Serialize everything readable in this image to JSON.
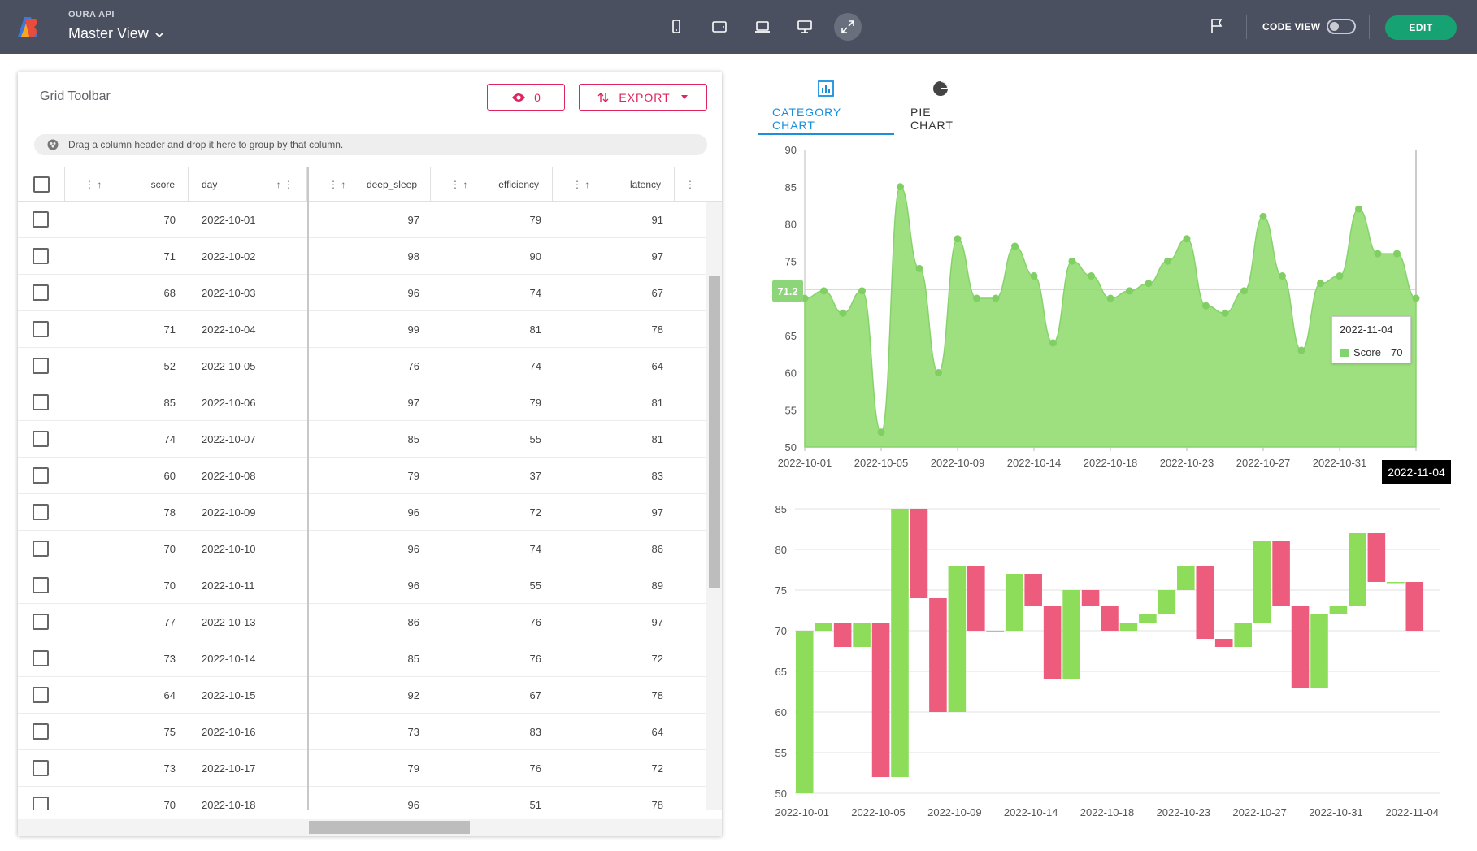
{
  "app": {
    "subtitle": "OURA API",
    "title": "Master View",
    "code_view_label": "CODE VIEW",
    "edit_label": "EDIT",
    "devices": [
      "phone-icon",
      "tablet-icon",
      "laptop-icon",
      "desktop-icon",
      "fullscreen-icon"
    ],
    "active_device": "fullscreen-icon"
  },
  "grid": {
    "toolbar_title": "Grid Toolbar",
    "hidden_count": "0",
    "export_label": "EXPORT",
    "group_hint": "Drag a column header and drop it here to group by that column.",
    "columns": [
      "score",
      "day",
      "deep_sleep",
      "efficiency",
      "latency"
    ],
    "rows": [
      [
        "70",
        "2022-10-01",
        "97",
        "79",
        "91"
      ],
      [
        "71",
        "2022-10-02",
        "98",
        "90",
        "97"
      ],
      [
        "68",
        "2022-10-03",
        "96",
        "74",
        "67"
      ],
      [
        "71",
        "2022-10-04",
        "99",
        "81",
        "78"
      ],
      [
        "52",
        "2022-10-05",
        "76",
        "74",
        "64"
      ],
      [
        "85",
        "2022-10-06",
        "97",
        "79",
        "81"
      ],
      [
        "74",
        "2022-10-07",
        "85",
        "55",
        "81"
      ],
      [
        "60",
        "2022-10-08",
        "79",
        "37",
        "83"
      ],
      [
        "78",
        "2022-10-09",
        "96",
        "72",
        "97"
      ],
      [
        "70",
        "2022-10-10",
        "96",
        "74",
        "86"
      ],
      [
        "70",
        "2022-10-11",
        "96",
        "55",
        "89"
      ],
      [
        "77",
        "2022-10-13",
        "86",
        "76",
        "97"
      ],
      [
        "73",
        "2022-10-14",
        "85",
        "76",
        "72"
      ],
      [
        "64",
        "2022-10-15",
        "92",
        "67",
        "78"
      ],
      [
        "75",
        "2022-10-16",
        "73",
        "83",
        "64"
      ],
      [
        "73",
        "2022-10-17",
        "79",
        "76",
        "72"
      ],
      [
        "70",
        "2022-10-18",
        "96",
        "51",
        "78"
      ]
    ]
  },
  "tabs": {
    "category": "CATEGORY CHART",
    "pie": "PIE CHART"
  },
  "tooltip": {
    "date": "2022-11-04",
    "series": "Score",
    "value": "70"
  },
  "crosshair": {
    "y_value": "71.2",
    "x_value": "2022-11-04"
  },
  "colors": {
    "accent": "#e0245e",
    "tab_active": "#1a8fde",
    "edit": "#17a274",
    "area": "#8cd579",
    "up": "#8ddc5a",
    "down": "#ee5c7d"
  },
  "chart_data": [
    {
      "type": "area",
      "x_labels": [
        "2022-10-01",
        "2022-10-05",
        "2022-10-09",
        "2022-10-14",
        "2022-10-18",
        "2022-10-23",
        "2022-10-27",
        "2022-10-31",
        "2022-11-04"
      ],
      "y_ticks": [
        "50",
        "55",
        "60",
        "65",
        "75",
        "80",
        "85",
        "90"
      ],
      "ylim": [
        50,
        90
      ],
      "series": [
        {
          "name": "Score",
          "values": [
            70,
            71,
            68,
            71,
            52,
            85,
            74,
            60,
            78,
            70,
            70,
            77,
            73,
            64,
            75,
            73,
            70,
            71,
            72,
            75,
            78,
            69,
            68,
            71,
            81,
            73,
            63,
            72,
            73,
            82,
            76,
            76,
            70
          ]
        }
      ]
    },
    {
      "type": "bar",
      "subtype": "waterfall",
      "x_labels": [
        "2022-10-01",
        "2022-10-05",
        "2022-10-09",
        "2022-10-14",
        "2022-10-18",
        "2022-10-23",
        "2022-10-27",
        "2022-10-31",
        "2022-11-04"
      ],
      "y_ticks": [
        "50",
        "55",
        "60",
        "65",
        "70",
        "75",
        "80",
        "85"
      ],
      "ylim": [
        50,
        85
      ],
      "series": [
        {
          "values": [
            70,
            71,
            68,
            71,
            52,
            85,
            74,
            60,
            78,
            70,
            70,
            77,
            73,
            64,
            75,
            73,
            70,
            71,
            72,
            75,
            78,
            69,
            68,
            71,
            81,
            73,
            63,
            72,
            73,
            82,
            76,
            76,
            70
          ]
        }
      ]
    }
  ]
}
